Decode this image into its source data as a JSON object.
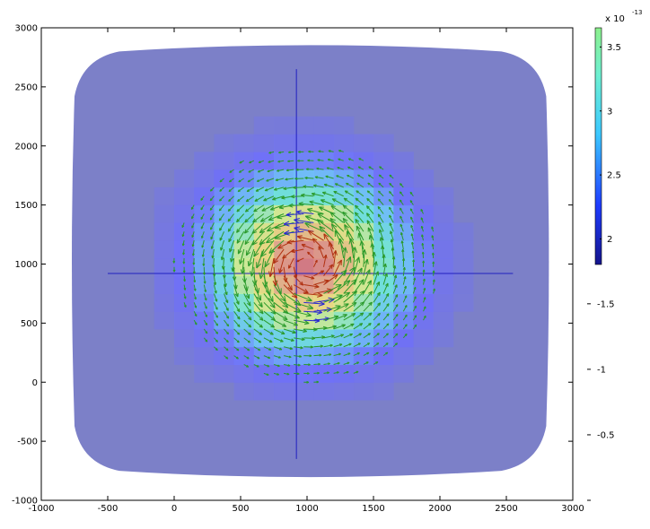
{
  "chart_data": {
    "type": "heatmap",
    "title": "",
    "xlabel": "",
    "ylabel": "",
    "xlim": [
      -1000,
      3000
    ],
    "ylim": [
      -1000,
      3000
    ],
    "x_ticks": [
      "-1000",
      "-500",
      "0",
      "500",
      "1000",
      "1500",
      "2000",
      "2500",
      "3000"
    ],
    "y_ticks": [
      "-1000",
      "-500",
      "0",
      "500",
      "1000",
      "1500",
      "2000",
      "2500",
      "3000"
    ],
    "grid": false,
    "field": {
      "kind": "vortex",
      "center": [
        1000,
        1000
      ],
      "peak_value": 3.65,
      "background_value": 1.8,
      "support_x": [
        -750,
        2800
      ],
      "support_y": [
        -750,
        2800
      ]
    },
    "cross_lines": {
      "horizontal_y": 920,
      "horizontal_x": [
        -500,
        2550
      ],
      "vertical_x": 920,
      "vertical_y": [
        -650,
        2650
      ]
    },
    "colorbar": {
      "exponent_label": "x 10",
      "exponent_power": "-13",
      "range": [
        1.8,
        3.65
      ],
      "solid_ticks": [
        "2",
        "2.5",
        "3",
        "3.5"
      ],
      "solid_tick_values": [
        2,
        2.5,
        3,
        3.5
      ],
      "extra_ticks": [
        "-1.5",
        "-1",
        "-0.5"
      ],
      "extra_tick_values": [
        1.5,
        1,
        0.5
      ],
      "colors": [
        "#14148c",
        "#1e3cff",
        "#3cc8ff",
        "#6ef0d2",
        "#8cf08c"
      ]
    },
    "colors": {
      "background_fill": "#7c80c8",
      "cross_line": "#2020c0",
      "arrow_outer": "#2a9a2a",
      "arrow_inner": "#b03010",
      "arrow_blue": "#2828d0"
    }
  }
}
